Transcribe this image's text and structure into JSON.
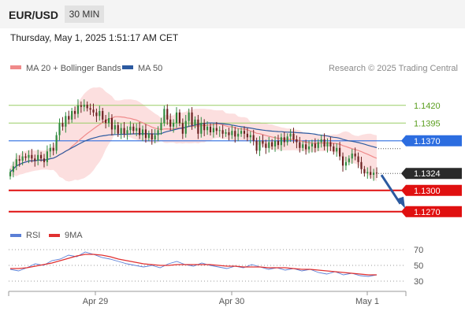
{
  "header": {
    "symbol": "EUR/USD",
    "timeframe": "30 MIN"
  },
  "datetime": "Thursday, May 1, 2025 1:51:17 AM CET",
  "legend_main": [
    {
      "label": "MA 20 + Bollinger Bands",
      "color": "#f08a8a"
    },
    {
      "label": "MA 50",
      "color": "#2c5aa0"
    }
  ],
  "source": "Research © 2025 Trading Central",
  "legend_rsi": [
    {
      "label": "RSI",
      "color": "#5b7fd6"
    },
    {
      "label": "9MA",
      "color": "#e03030"
    }
  ],
  "colors": {
    "up": "#2e8b3e",
    "down": "#6b1f1f",
    "resistance": "#9acd66",
    "pivot": "#2c6de0",
    "support": "#e01010",
    "arrow": "#2c5aa0",
    "band": "#fbd7d7"
  },
  "chart_data": [
    {
      "type": "candlestick",
      "ylim": [
        1.1252,
        1.1452
      ],
      "x_ticks": [
        "Apr 29",
        "Apr 30",
        "May 1"
      ],
      "levels": [
        {
          "label": "1.1420",
          "value": 1.142,
          "kind": "resistance"
        },
        {
          "label": "1.1395",
          "value": 1.1395,
          "kind": "resistance"
        },
        {
          "label": "1.1370",
          "value": 1.137,
          "kind": "pivot"
        },
        {
          "label": "1.1324",
          "value": 1.1324,
          "kind": "last"
        },
        {
          "label": "1.1300",
          "value": 1.13,
          "kind": "support"
        },
        {
          "label": "1.1270",
          "value": 1.127,
          "kind": "support"
        }
      ],
      "close_series": [
        1.1326,
        1.1334,
        1.1344,
        1.1342,
        1.1348,
        1.1346,
        1.135,
        1.1345,
        1.1342,
        1.135,
        1.1345,
        1.134,
        1.1355,
        1.136,
        1.1356,
        1.1378,
        1.1395,
        1.139,
        1.1405,
        1.14,
        1.1412,
        1.1408,
        1.142,
        1.1418,
        1.1421,
        1.1416,
        1.1414,
        1.141,
        1.1405,
        1.1412,
        1.14,
        1.1395,
        1.1402,
        1.1386,
        1.1392,
        1.138,
        1.1388,
        1.138,
        1.1385,
        1.139,
        1.1384,
        1.1388,
        1.1378,
        1.1386,
        1.1374,
        1.138,
        1.1372,
        1.1378,
        1.1385,
        1.1395,
        1.1415,
        1.14,
        1.139,
        1.1395,
        1.141,
        1.1395,
        1.138,
        1.1398,
        1.141,
        1.1392,
        1.14,
        1.138,
        1.1395,
        1.1385,
        1.139,
        1.1382,
        1.1388,
        1.1384,
        1.1385,
        1.138,
        1.1382,
        1.1378,
        1.1384,
        1.1376,
        1.138,
        1.1384,
        1.138,
        1.1375,
        1.1378,
        1.137,
        1.1356,
        1.137,
        1.1366,
        1.136,
        1.1368,
        1.1362,
        1.137,
        1.1364,
        1.1375,
        1.1368,
        1.1376,
        1.138,
        1.1372,
        1.1368,
        1.136,
        1.1365,
        1.1358,
        1.1362,
        1.1366,
        1.136,
        1.1368,
        1.1372,
        1.1362,
        1.1368,
        1.1362,
        1.1355,
        1.136,
        1.1348,
        1.1335,
        1.134,
        1.1345,
        1.1352,
        1.1348,
        1.134,
        1.133,
        1.1324,
        1.1326,
        1.1322,
        1.1325,
        1.1324
      ]
    },
    {
      "type": "line",
      "title": "RSI",
      "ylim": [
        25,
        75
      ],
      "y_ticks": [
        70,
        50,
        30
      ],
      "series": [
        {
          "name": "RSI",
          "values": [
            45,
            43,
            47,
            52,
            50,
            56,
            58,
            63,
            61,
            67,
            64,
            60,
            58,
            55,
            52,
            50,
            48,
            50,
            47,
            52,
            55,
            51,
            49,
            53,
            50,
            48,
            46,
            49,
            47,
            51,
            48,
            45,
            47,
            44,
            46,
            43,
            45,
            41,
            39,
            42,
            38,
            40,
            37,
            36,
            38
          ]
        },
        {
          "name": "9MA",
          "values": [
            46,
            46,
            47,
            49,
            51,
            53,
            56,
            59,
            62,
            64,
            64,
            63,
            61,
            58,
            56,
            54,
            52,
            51,
            50,
            50,
            51,
            51,
            51,
            51,
            51,
            50,
            49,
            49,
            48,
            48,
            48,
            47,
            47,
            47,
            46,
            45,
            45,
            44,
            43,
            42,
            41,
            40,
            39,
            38,
            38
          ]
        }
      ]
    }
  ]
}
